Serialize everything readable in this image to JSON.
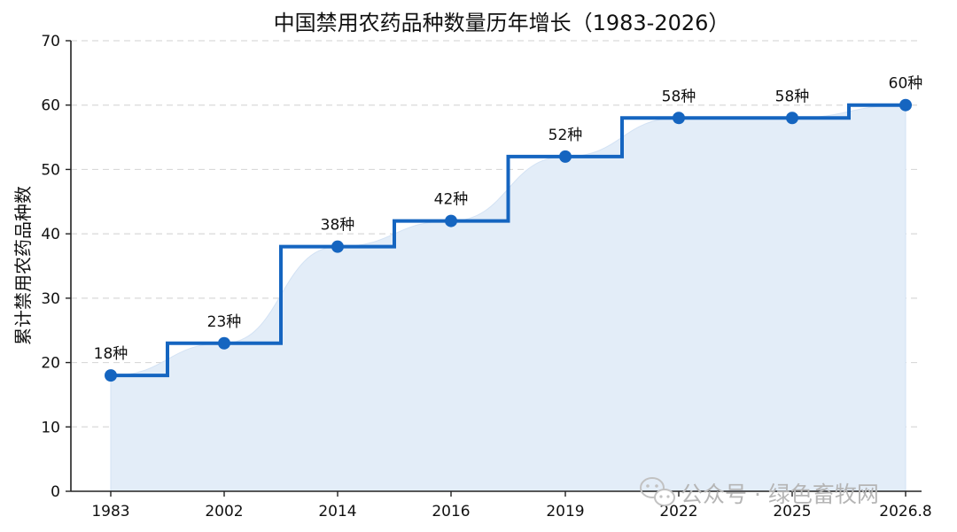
{
  "chart_data": {
    "type": "line",
    "title": "中国禁用农药品种数量历年增长（1983-2026）",
    "ylabel": "累计禁用农药品种数",
    "xlabel": "",
    "ylim": [
      0,
      70
    ],
    "yticks": [
      0,
      10,
      20,
      30,
      40,
      50,
      60,
      70
    ],
    "grid": "horizontal dashed",
    "categories": [
      "1983",
      "2002",
      "2014",
      "2016",
      "2019",
      "2022",
      "2025",
      "2026.8"
    ],
    "values": [
      18,
      23,
      38,
      42,
      52,
      58,
      58,
      60
    ],
    "labels": [
      "18种",
      "23种",
      "38种",
      "42种",
      "52种",
      "58种",
      "58种",
      "60种"
    ],
    "series": [
      {
        "values": [
          18,
          23,
          38,
          42,
          52,
          58,
          58,
          60
        ],
        "style": "step",
        "color": "#1565c0",
        "fill": "#e3edf8"
      }
    ]
  },
  "watermark": {
    "icon": "wechat-icon",
    "text": "公众号 · 绿色畜牧网"
  },
  "colors": {
    "line": "#1565c0",
    "fill": "#e3edf8",
    "grid": "#d9d9d9",
    "axis": "#222222",
    "watermark": "#b5b5b5"
  }
}
